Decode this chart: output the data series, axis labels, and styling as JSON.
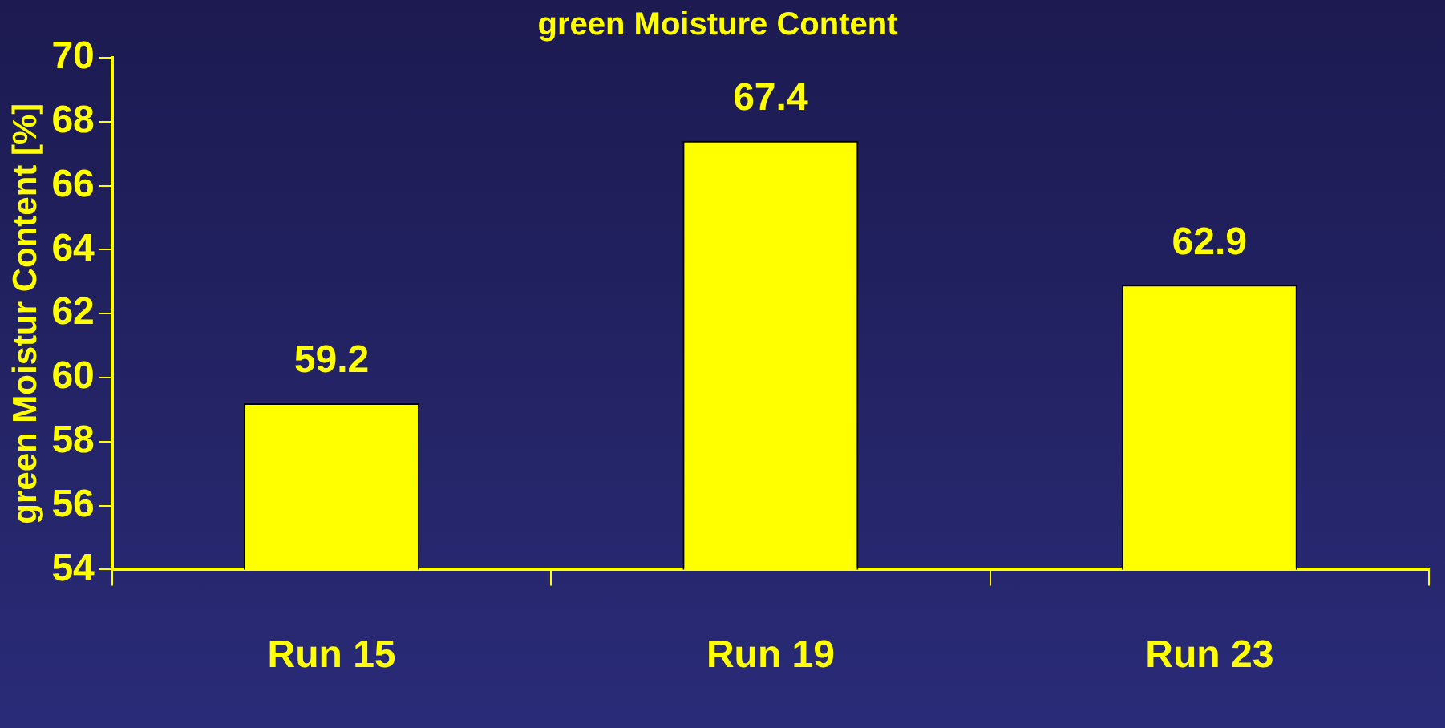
{
  "chart_data": {
    "type": "bar",
    "title": "green Moisture Content",
    "ylabel": "green Moistur Content [%]",
    "categories": [
      "Run 15",
      "Run 19",
      "Run 23"
    ],
    "values": [
      59.2,
      67.4,
      62.9
    ],
    "color": "#ffff00",
    "ylim": [
      54,
      70
    ],
    "yticks": [
      54,
      56,
      58,
      60,
      62,
      64,
      66,
      68,
      70
    ],
    "grid": false,
    "legend": false,
    "data_labels": true
  }
}
